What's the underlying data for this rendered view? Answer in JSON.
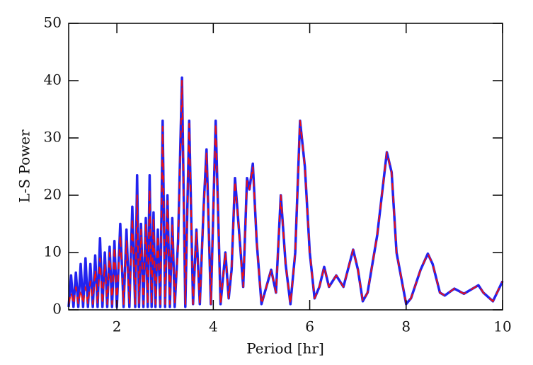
{
  "chart_data": {
    "type": "line",
    "xlabel": "Period [hr]",
    "ylabel": "L-S Power",
    "xlim": [
      1,
      10
    ],
    "ylim": [
      0,
      50
    ],
    "xticks": [
      2,
      4,
      6,
      8,
      10
    ],
    "yticks": [
      0,
      10,
      20,
      30,
      40,
      50
    ],
    "x": [
      1.0,
      1.05,
      1.1,
      1.15,
      1.2,
      1.25,
      1.3,
      1.35,
      1.4,
      1.45,
      1.5,
      1.55,
      1.6,
      1.65,
      1.7,
      1.75,
      1.8,
      1.85,
      1.9,
      1.95,
      2.0,
      2.07,
      2.14,
      2.2,
      2.26,
      2.32,
      2.38,
      2.42,
      2.46,
      2.5,
      2.55,
      2.6,
      2.64,
      2.68,
      2.72,
      2.76,
      2.8,
      2.85,
      2.9,
      2.95,
      3.0,
      3.05,
      3.1,
      3.15,
      3.2,
      3.27,
      3.35,
      3.42,
      3.5,
      3.58,
      3.65,
      3.72,
      3.8,
      3.86,
      3.95,
      4.05,
      4.15,
      4.25,
      4.32,
      4.38,
      4.45,
      4.55,
      4.62,
      4.7,
      4.75,
      4.82,
      4.9,
      5.0,
      5.1,
      5.2,
      5.3,
      5.4,
      5.5,
      5.6,
      5.7,
      5.8,
      5.9,
      6.0,
      6.1,
      6.2,
      6.3,
      6.4,
      6.55,
      6.7,
      6.9,
      7.0,
      7.1,
      7.2,
      7.4,
      7.6,
      7.7,
      7.8,
      8.0,
      8.1,
      8.3,
      8.45,
      8.55,
      8.7,
      8.8,
      9.0,
      9.2,
      9.5,
      9.6,
      9.8,
      10.0
    ],
    "series": [
      {
        "color": "#2222ee",
        "values": [
          0.5,
          6,
          0.5,
          6.5,
          0.5,
          8,
          0.5,
          9,
          0.5,
          8,
          0.5,
          9.5,
          0.5,
          12.5,
          0.5,
          10,
          0.5,
          11,
          0.5,
          12,
          0.5,
          15,
          0.5,
          14,
          0.5,
          18,
          0.5,
          23.5,
          0.5,
          15,
          0.5,
          16,
          0.5,
          23.5,
          0.5,
          17,
          0.5,
          14,
          0.5,
          33,
          0.5,
          20,
          0.5,
          16,
          0.5,
          12,
          40.5,
          0.5,
          33,
          1,
          14,
          1,
          18,
          28,
          1,
          33,
          1,
          10,
          2,
          7,
          23,
          12,
          4,
          23,
          21,
          25.5,
          12,
          1,
          4,
          7,
          3,
          20,
          8,
          1,
          10,
          33,
          25,
          10,
          2,
          4,
          7.5,
          4,
          6,
          4,
          10.5,
          7,
          1.5,
          3,
          13,
          27.5,
          24,
          10,
          1,
          2,
          7,
          9.8,
          8,
          3,
          2.5,
          3.7,
          2.8,
          4.3,
          3,
          1.5,
          5
        ]
      },
      {
        "color": "#ee1111",
        "values": [
          1,
          3,
          1,
          4,
          1,
          3.5,
          1,
          4,
          1,
          5,
          1,
          7,
          1,
          9,
          1,
          8,
          1,
          10,
          1,
          11,
          1,
          13,
          1,
          12,
          1,
          16,
          1,
          20,
          1,
          14,
          1,
          15,
          1,
          21,
          1,
          16,
          1,
          13,
          1,
          32,
          1,
          19,
          1,
          15,
          1,
          11,
          40,
          1,
          32.5,
          1,
          13.5,
          1,
          17.5,
          27.5,
          1,
          32.5,
          1,
          10,
          2,
          7,
          22.5,
          12,
          4,
          22.5,
          21,
          25,
          12,
          1,
          4,
          7,
          3,
          20,
          8,
          1,
          10,
          33,
          25,
          10,
          2,
          4,
          7.5,
          4,
          6,
          4,
          10.5,
          7,
          1.5,
          3,
          13,
          27.5,
          24,
          10,
          1,
          2,
          7,
          9.8,
          8,
          3,
          2.5,
          3.7,
          2.8,
          4.3,
          3,
          1.5,
          5
        ]
      }
    ]
  }
}
